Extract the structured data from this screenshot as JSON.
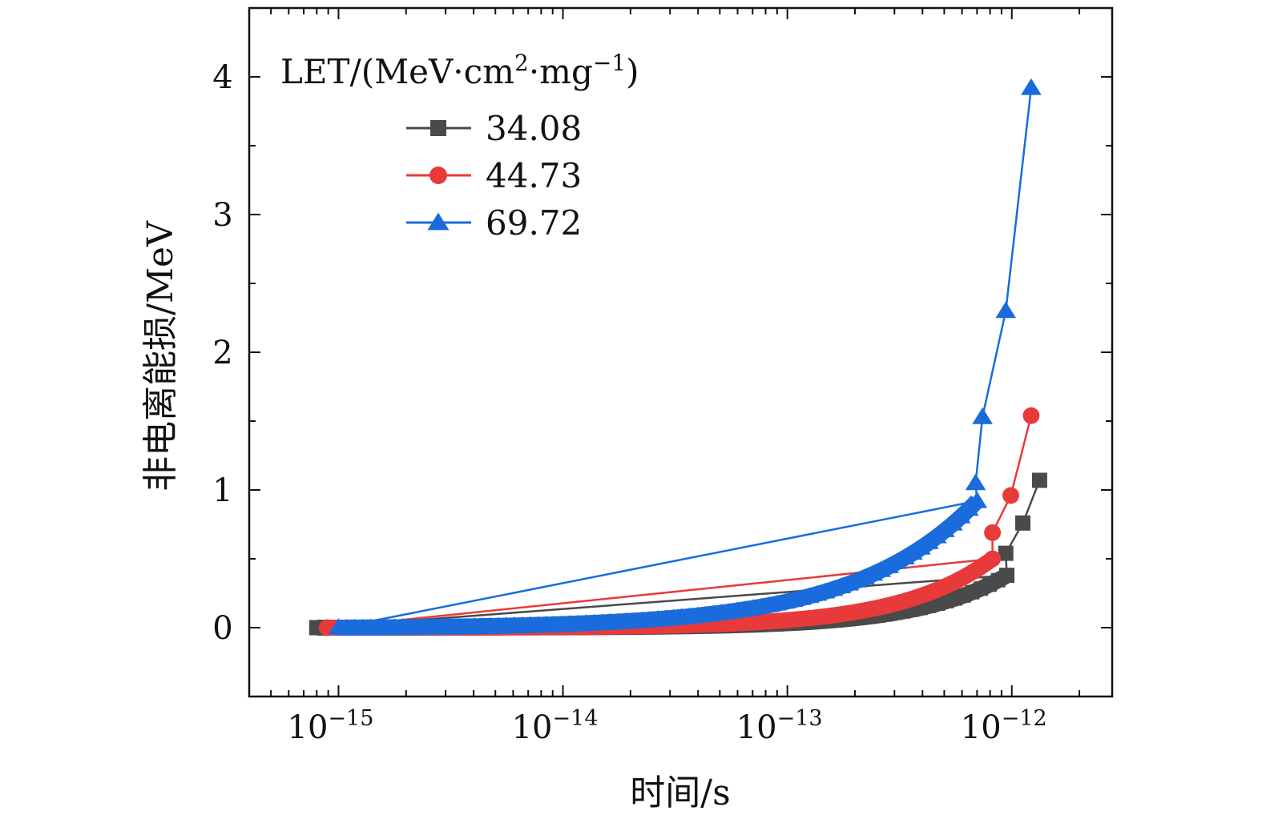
{
  "chart_data": {
    "type": "scatter",
    "title": "",
    "xlabel": "时间/s",
    "ylabel": "非电离能损/MeV",
    "xscale": "log",
    "xlim": [
      4e-16,
      2.8e-12
    ],
    "ylim": [
      -0.5,
      4.5
    ],
    "x_ticks": [
      {
        "value": 1e-15,
        "base": "10",
        "exp": "−15"
      },
      {
        "value": 1e-14,
        "base": "10",
        "exp": "−14"
      },
      {
        "value": 1e-13,
        "base": "10",
        "exp": "−13"
      },
      {
        "value": 1e-12,
        "base": "10",
        "exp": "−12"
      }
    ],
    "y_ticks": [
      {
        "value": 0,
        "label": "0"
      },
      {
        "value": 1,
        "label": "1"
      },
      {
        "value": 2,
        "label": "2"
      },
      {
        "value": 3,
        "label": "3"
      },
      {
        "value": 4,
        "label": "4"
      }
    ],
    "legend": {
      "title": "LET/(MeV·cm²·mg⁻¹)",
      "title_parts": {
        "main": "LET/(MeV·cm",
        "sup1": "2",
        "mid": "·mg",
        "sup2": "−1",
        "end": ")"
      },
      "position": "top-left"
    },
    "series": [
      {
        "name": "34.08",
        "color": "#4a4a4a",
        "marker": "square",
        "dense_band": {
          "x_start": 8e-16,
          "x_end": 9.5e-13,
          "y_end": 0.38,
          "growth": 1.1
        },
        "points": [
          {
            "x": 8e-16,
            "y": 0.0
          },
          {
            "x": 9.5e-13,
            "y": 0.38
          },
          {
            "x": 9.4e-13,
            "y": 0.54
          },
          {
            "x": 1.12e-12,
            "y": 0.76
          },
          {
            "x": 1.33e-12,
            "y": 1.07
          }
        ]
      },
      {
        "name": "44.73",
        "color": "#e83a3a",
        "marker": "circle",
        "dense_band": {
          "x_start": 8.9e-16,
          "x_end": 8.2e-13,
          "y_end": 0.5,
          "growth": 1.05
        },
        "points": [
          {
            "x": 8.9e-16,
            "y": 0.0
          },
          {
            "x": 8.2e-13,
            "y": 0.5
          },
          {
            "x": 8.2e-13,
            "y": 0.69
          },
          {
            "x": 9.9e-13,
            "y": 0.96
          },
          {
            "x": 1.22e-12,
            "y": 1.54
          }
        ]
      },
      {
        "name": "69.72",
        "color": "#1a6cdc",
        "marker": "triangle",
        "dense_band": {
          "x_start": 1e-15,
          "x_end": 7e-13,
          "y_end": 0.92,
          "growth": 0.8
        },
        "points": [
          {
            "x": 1e-15,
            "y": 0.0
          },
          {
            "x": 7e-13,
            "y": 0.92
          },
          {
            "x": 6.9e-13,
            "y": 1.05
          },
          {
            "x": 7.4e-13,
            "y": 1.53
          },
          {
            "x": 9.4e-13,
            "y": 2.3
          },
          {
            "x": 1.22e-12,
            "y": 3.92
          }
        ]
      }
    ]
  }
}
